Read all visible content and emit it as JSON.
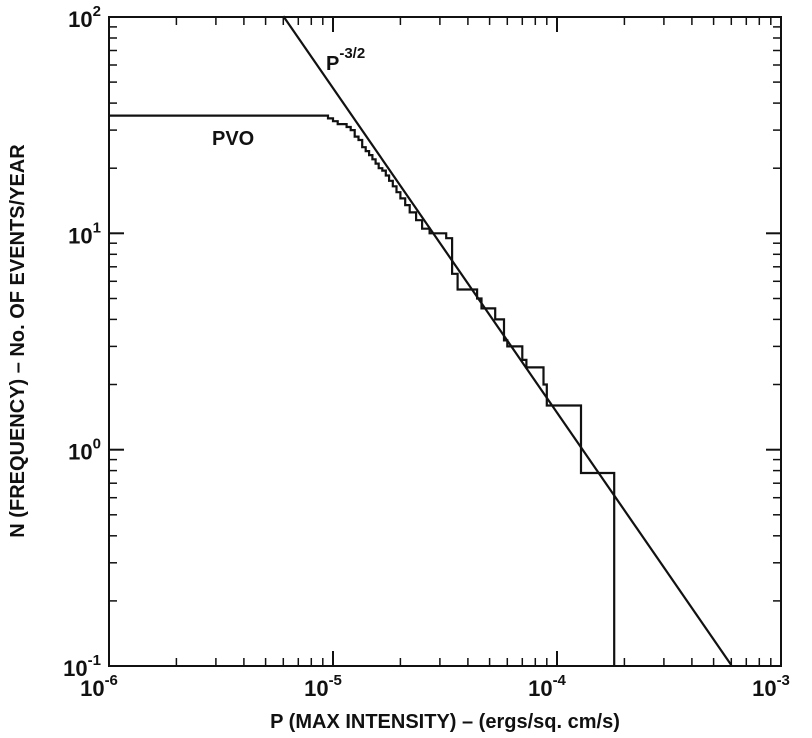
{
  "chart_data": {
    "type": "line",
    "xlabel": "P (MAX INTENSITY) – (ergs/sq. cm/s)",
    "ylabel": "N (FREQUENCY) – No. OF EVENTS/YEAR",
    "x_scale": "log",
    "y_scale": "log",
    "xlim": [
      1e-06,
      0.001
    ],
    "ylim": [
      0.1,
      100
    ],
    "grid": false,
    "x_ticks": [
      {
        "value": 1e-06,
        "base": "10",
        "exp": "-6"
      },
      {
        "value": 1e-05,
        "base": "10",
        "exp": "-5"
      },
      {
        "value": 0.0001,
        "base": "10",
        "exp": "-4"
      },
      {
        "value": 0.001,
        "base": "10",
        "exp": "-3"
      }
    ],
    "y_ticks": [
      {
        "value": 0.1,
        "base": "10",
        "exp": "-1"
      },
      {
        "value": 1,
        "base": "10",
        "exp": "0"
      },
      {
        "value": 10,
        "base": "10",
        "exp": "1"
      },
      {
        "value": 100,
        "base": "10",
        "exp": "2"
      }
    ],
    "annotations": [
      {
        "id": "pvo",
        "text": "PVO"
      },
      {
        "id": "fit",
        "base": "P",
        "exp": "-3/2"
      }
    ],
    "series": [
      {
        "name": "PVO",
        "style": "step",
        "x": [
          1e-06,
          8.9e-06,
          9.5e-06,
          1e-05,
          1.05e-05,
          1.1e-05,
          1.15e-05,
          1.2e-05,
          1.25e-05,
          1.3e-05,
          1.35e-05,
          1.4e-05,
          1.45e-05,
          1.5e-05,
          1.55e-05,
          1.6e-05,
          1.66e-05,
          1.72e-05,
          1.78e-05,
          1.85e-05,
          1.92e-05,
          2e-05,
          2.1e-05,
          2.2e-05,
          2.35e-05,
          2.5e-05,
          2.7e-05,
          3.2e-05,
          3.4e-05,
          3.6e-05,
          4.4e-05,
          4.6e-05,
          5.3e-05,
          5.8e-05,
          6e-05,
          7e-05,
          7.3e-05,
          8.7e-05,
          9e-05,
          0.000125,
          0.000128,
          0.00018,
          0.00018
        ],
        "y": [
          35,
          35,
          34,
          33,
          32,
          32,
          31,
          30,
          28,
          27,
          25,
          24,
          23,
          22,
          21,
          20,
          19.5,
          18.5,
          17.5,
          16.5,
          15.5,
          14.5,
          13.5,
          12.5,
          11.5,
          10.5,
          10,
          9.5,
          6.5,
          5.5,
          5,
          4.5,
          4,
          3.2,
          3,
          2.6,
          2.4,
          2,
          1.6,
          1.6,
          0.78,
          0.78,
          0.1
        ]
      },
      {
        "name": "P^-3/2",
        "style": "line",
        "x": [
          6e-06,
          0.0006
        ],
        "y": [
          101,
          0.101
        ]
      }
    ]
  }
}
